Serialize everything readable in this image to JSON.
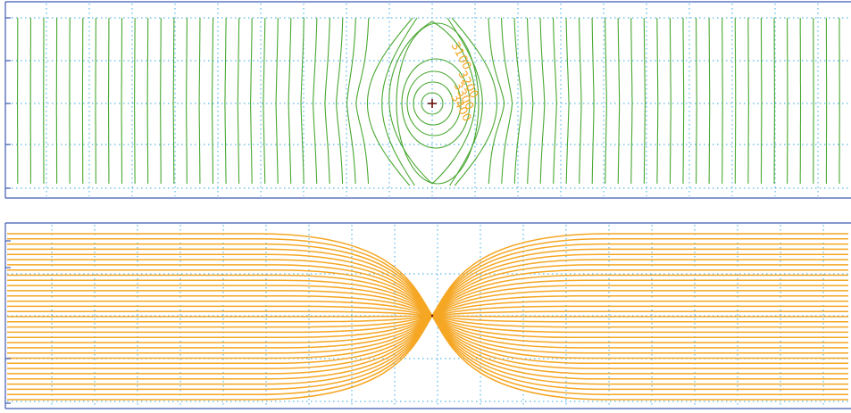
{
  "colors": {
    "background": "#ffffff",
    "frame": "#3f5bb0",
    "grid": "#5bb8e8",
    "head_contours": "#4aa832",
    "streamlines": "#f5a623",
    "well": "#6b0f0f",
    "contour_labels": "#f5a623"
  },
  "chart_data": [
    {
      "type": "contour",
      "field": "hydraulic head",
      "well_marker": "+",
      "contour_labels": [
        "3100",
        "3200",
        "3300",
        "3400"
      ],
      "grid": true
    },
    {
      "type": "streamlines",
      "field": "flow paths converging to well",
      "well_marker": "point",
      "streamline_count": 33,
      "grid": true
    }
  ]
}
